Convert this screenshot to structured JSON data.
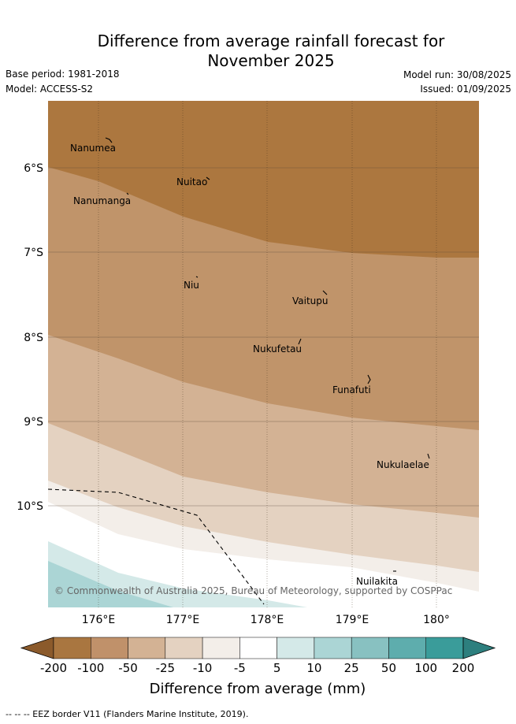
{
  "title_line1": "Difference from average rainfall forecast for",
  "title_line2": "November 2025",
  "base_period": "Base period: 1981-2018",
  "model": "Model: ACCESS-S2",
  "model_run": "Model run: 30/08/2025",
  "issued": "Issued: 01/09/2025",
  "copyright": "© Commonwealth of Australia 2025, Bureau of Meteorology, supported by COSPPac",
  "lat_labels": [
    "6°S",
    "7°S",
    "8°S",
    "9°S",
    "10°S"
  ],
  "lon_labels": [
    "176°E",
    "177°E",
    "178°E",
    "179°E",
    "180°"
  ],
  "places": [
    {
      "name": "Nanumea"
    },
    {
      "name": "Nuitao"
    },
    {
      "name": "Nanumanga"
    },
    {
      "name": "Niu"
    },
    {
      "name": "Vaitupu"
    },
    {
      "name": "Nukufetau"
    },
    {
      "name": "Funafuti"
    },
    {
      "name": "Nukulaelae"
    },
    {
      "name": "Nuilakita"
    }
  ],
  "colorbar": {
    "ticks": [
      "-200",
      "-100",
      "-50",
      "-25",
      "-10",
      "-5",
      "5",
      "10",
      "25",
      "50",
      "100",
      "200"
    ],
    "colors": [
      "#8b5a2b",
      "#a97640",
      "#c0916a",
      "#d3b294",
      "#e4d2c1",
      "#f3eee9",
      "#ffffff",
      "#d4e9e8",
      "#abd5d5",
      "#88c1c1",
      "#5eadad",
      "#3a9c9a",
      "#2d7f7e"
    ],
    "label": "Difference from average (mm)"
  },
  "footnote": "--  --  -- EEZ border V11 (Flanders Marine Institute, 2019)."
}
